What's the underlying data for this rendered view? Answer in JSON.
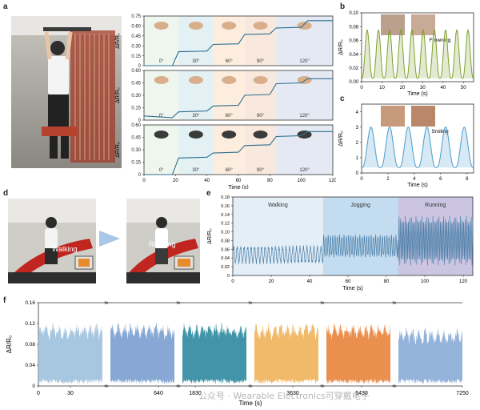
{
  "panels": {
    "a": {
      "label": "a"
    },
    "b": {
      "label": "b"
    },
    "c": {
      "label": "c"
    },
    "d": {
      "label": "d"
    },
    "e": {
      "label": "e"
    },
    "f": {
      "label": "f"
    }
  },
  "photo_d": {
    "left_caption": "Walking",
    "right_caption": "Running"
  },
  "watermark": "公众号 · Wearable Electronics可穿戴电子",
  "chart_data": [
    {
      "id": "a-finger",
      "type": "line",
      "ylabel": "ΔR/R₀",
      "yticks": [
        "0",
        "0.15",
        "0.30",
        "0.45",
        "0.60",
        "0.75"
      ],
      "ylim": [
        0,
        0.75
      ],
      "xlim": [
        0,
        120
      ],
      "angle_labels": [
        "0°",
        "30°",
        "60°",
        "90°",
        "120°"
      ],
      "x": [
        0,
        18,
        22,
        40,
        44,
        60,
        64,
        80,
        84,
        100,
        104,
        120
      ],
      "y": [
        0,
        0,
        0.21,
        0.22,
        0.32,
        0.33,
        0.47,
        0.48,
        0.57,
        0.58,
        0.68,
        0.68
      ]
    },
    {
      "id": "a-elbow",
      "type": "line",
      "ylabel": "ΔR/R₀",
      "yticks": [
        "0",
        "0.15",
        "0.30",
        "0.45",
        "0.60"
      ],
      "ylim": [
        0,
        0.6
      ],
      "xlim": [
        0,
        120
      ],
      "angle_labels": [
        "0°",
        "30°",
        "60°",
        "90°",
        "120°"
      ],
      "x": [
        0,
        18,
        22,
        40,
        44,
        60,
        64,
        80,
        84,
        100,
        104,
        120
      ],
      "y": [
        0.05,
        0.03,
        0.1,
        0.11,
        0.17,
        0.18,
        0.3,
        0.31,
        0.44,
        0.45,
        0.5,
        0.5
      ]
    },
    {
      "id": "a-knee",
      "type": "line",
      "ylabel": "ΔR/R₀",
      "yticks": [
        "0",
        "0.15",
        "0.30",
        "0.45",
        "0.60"
      ],
      "ylim": [
        0,
        0.6
      ],
      "xlim": [
        0,
        120
      ],
      "xticks": [
        "0",
        "20",
        "40",
        "60",
        "80",
        "100",
        "120"
      ],
      "xlabel": "Time (s)",
      "angle_labels": [
        "0°",
        "30°",
        "60°",
        "90°",
        "120°"
      ],
      "x": [
        0,
        18,
        22,
        40,
        44,
        60,
        64,
        80,
        84,
        100,
        104,
        120
      ],
      "y": [
        0,
        0,
        0.2,
        0.21,
        0.26,
        0.27,
        0.35,
        0.36,
        0.46,
        0.47,
        0.52,
        0.52
      ]
    },
    {
      "id": "b-frowning",
      "type": "line",
      "ylabel": "ΔR/R₀",
      "yticks": [
        "0.00",
        "0.02",
        "0.04",
        "0.06",
        "0.08",
        "0.10"
      ],
      "ylim": [
        0,
        0.1
      ],
      "xticks": [
        "0",
        "10",
        "20",
        "30",
        "40",
        "50"
      ],
      "xlim": [
        0,
        55
      ],
      "xlabel": "Time (s)",
      "annotation": "Frowning",
      "cycles": 10,
      "peak": 0.075,
      "base": 0.005,
      "color": "#7ea02c"
    },
    {
      "id": "c-smiling",
      "type": "line",
      "ylabel": "ΔR/R₀",
      "yticks": [
        "0",
        "1",
        "2",
        "3",
        "4"
      ],
      "ylim": [
        0,
        4.5
      ],
      "xticks": [
        "0",
        "2",
        "4",
        "6",
        "8"
      ],
      "xlim": [
        0,
        8.5
      ],
      "xlabel": "Time (s)",
      "annotation": "Smiling",
      "cycles": 6,
      "peak": 3.0,
      "base": 0.35,
      "color": "#4a9ccc"
    },
    {
      "id": "e-activity",
      "type": "line",
      "ylabel": "ΔR/R₀",
      "yticks": [
        "0",
        "0.02",
        "0.04",
        "0.06",
        "0.08",
        "0.10",
        "0.12",
        "0.14",
        "0.16",
        "0.18"
      ],
      "ylim": [
        0,
        0.18
      ],
      "xticks": [
        "0",
        "20",
        "40",
        "60",
        "80",
        "100",
        "120"
      ],
      "xlim": [
        0,
        125
      ],
      "xlabel": "Time (s)",
      "regions": [
        {
          "name": "Walking",
          "from": 0,
          "to": 47,
          "color": "#e4eef7",
          "amp_min": 0.03,
          "amp_max": 0.065
        },
        {
          "name": "Jogging",
          "from": 47,
          "to": 86,
          "color": "#c4dcef",
          "amp_min": 0.045,
          "amp_max": 0.09
        },
        {
          "name": "Running",
          "from": 86,
          "to": 125,
          "color": "#cbc5e2",
          "amp_min": 0.035,
          "amp_max": 0.125
        }
      ],
      "color": "#4a7fa8"
    },
    {
      "id": "f-longterm",
      "type": "area",
      "ylabel": "ΔR/R₀",
      "yticks": [
        "0",
        "0.04",
        "0.08",
        "0.12",
        "0.16"
      ],
      "ylim": [
        0,
        0.16
      ],
      "xlabel": "Time (s)",
      "xticks": [
        "0",
        "30",
        "640",
        "1830",
        "3630",
        "5430",
        "7250"
      ],
      "segments": [
        {
          "label": "30",
          "color": "#9dc0dc",
          "level": 0.095
        },
        {
          "label": "640",
          "color": "#7a9fcf",
          "level": 0.095
        },
        {
          "label": "1830",
          "color": "#2e8aa0",
          "level": 0.095
        },
        {
          "label": "3630",
          "color": "#f0b25a",
          "level": 0.095
        },
        {
          "label": "5430",
          "color": "#e8833a",
          "level": 0.095
        },
        {
          "label": "7250",
          "color": "#88abd6",
          "level": 0.085
        }
      ]
    }
  ]
}
